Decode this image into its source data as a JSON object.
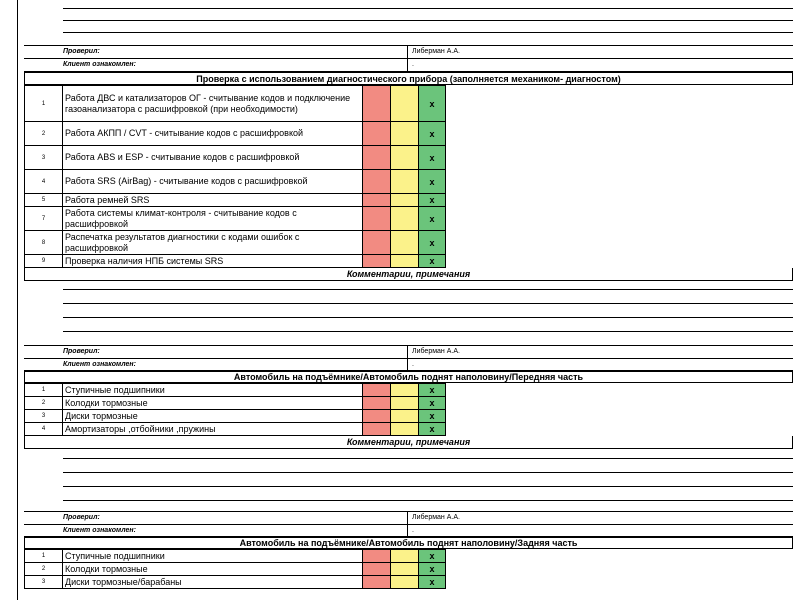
{
  "signature": {
    "checked_label": "Проверил:",
    "checked_value": "Либерман А.А.",
    "client_label": "Клиент ознакомлен:",
    "client_value": "."
  },
  "comments_label": "Комментарии, примечания",
  "mark": "x",
  "sections": [
    {
      "title": "Проверка с использованием диагностического прибора (заполняется механиком- диагностом)",
      "items": [
        {
          "num": "1",
          "text": "Работа ДВС и катализаторов ОГ - считывание кодов и подключение газоанализатора с расшифровкой (при необходимости)"
        },
        {
          "num": "2",
          "text": "Работа АКПП / CVT - считывание кодов с расшифровкой"
        },
        {
          "num": "3",
          "text": "Работа ABS и ESP - считывание кодов с расшифровкой"
        },
        {
          "num": "4",
          "text": "Работа SRS (AirBag) - считывание кодов с расшифровкой"
        },
        {
          "num": "5",
          "text": "Работа ремней SRS"
        },
        {
          "num": "7",
          "text": "Работа системы климат-контроля - считывание кодов с расшифровкой"
        },
        {
          "num": "8",
          "text": "Распечатка результатов диагностики с кодами ошибок с расшифровкой"
        },
        {
          "num": "9",
          "text": "Проверка наличия НПБ системы SRS"
        }
      ]
    },
    {
      "title": "Автомобиль на подъёмнике/Автомобиль поднят наполовину/Передняя часть",
      "items": [
        {
          "num": "1",
          "text": "Ступичные подшипники"
        },
        {
          "num": "2",
          "text": "Колодки тормозные"
        },
        {
          "num": "3",
          "text": "Диски тормозные"
        },
        {
          "num": "4",
          "text": "Амортизаторы ,отбойники ,пружины"
        }
      ]
    },
    {
      "title": "Автомобиль на подъёмнике/Автомобиль поднят наполовину/Задняя часть",
      "items": [
        {
          "num": "1",
          "text": "Ступичные подшипники"
        },
        {
          "num": "2",
          "text": "Колодки тормозные"
        },
        {
          "num": "3",
          "text": "Диски тормозные/барабаны"
        }
      ]
    }
  ]
}
